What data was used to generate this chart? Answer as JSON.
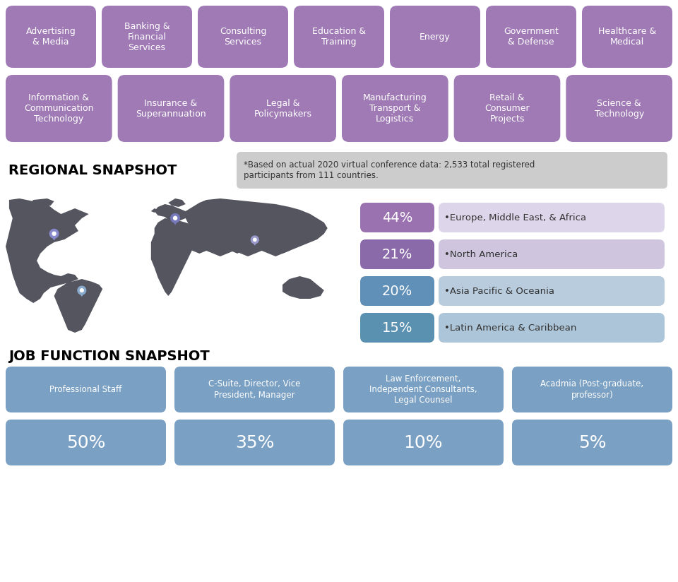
{
  "bg_color": "#ffffff",
  "purple_color": "#a07ab5",
  "blue_color": "#7aa0c4",
  "row1_labels": [
    "Advertising\n& Media",
    "Banking &\nFinancial\nServices",
    "Consulting\nServices",
    "Education &\nTraining",
    "Energy",
    "Government\n& Defense",
    "Healthcare &\nMedical"
  ],
  "row2_labels": [
    "Information &\nCommunication\nTechnology",
    "Insurance &\nSuperannuation",
    "Legal &\nPolicymakers",
    "Manufacturing\nTransport &\nLogistics",
    "Retail &\nConsumer\nProjects",
    "Science &\nTechnology"
  ],
  "regional_title": "REGIONAL SNAPSHOT",
  "note_text": "*Based on actual 2020 virtual conference data: 2,533 total registered\nparticipants from 111 countries.",
  "regional_data": [
    {
      "pct": "44%",
      "label": "Europe, Middle East, & Africa",
      "box_color": "#9b72b0",
      "bg_color": "#ddd5ea"
    },
    {
      "pct": "21%",
      "label": "North America",
      "box_color": "#8b6aaa",
      "bg_color": "#cfc5df"
    },
    {
      "pct": "20%",
      "label": "Asia Pacific & Oceania",
      "box_color": "#6090b8",
      "bg_color": "#b8ccde"
    },
    {
      "pct": "15%",
      "label": "Latin America & Caribbean",
      "box_color": "#5a90b0",
      "bg_color": "#adc5d8"
    }
  ],
  "job_title": "JOB FUNCTION SNAPSHOT",
  "job_labels": [
    "Professional Staff",
    "C-Suite, Director, Vice\nPresident, Manager",
    "Law Enforcement,\nIndependent Consultants,\nLegal Counsel",
    "Acadmia (Post-graduate,\nprofessor)"
  ],
  "job_pcts": [
    "50%",
    "35%",
    "10%",
    "5%"
  ],
  "job_color": "#7aa0c4"
}
